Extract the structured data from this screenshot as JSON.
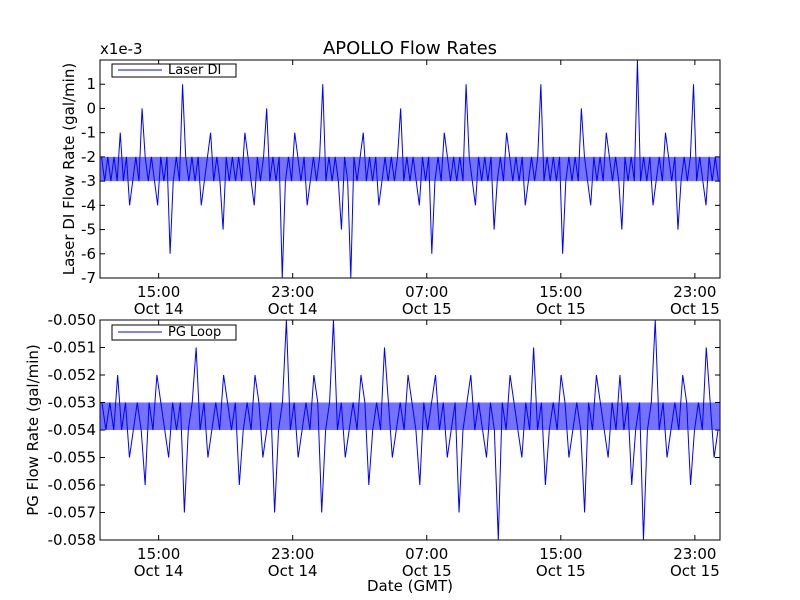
{
  "chart_data": [
    {
      "type": "line",
      "title": "APOLLO Flow Rates",
      "ylabel": "Laser DI Flow Rate (gal/min)",
      "xlabel": "",
      "scale_factor_label": "x1e-3",
      "ylim": [
        -7,
        2
      ],
      "yticks": [
        1,
        0,
        -1,
        -2,
        -3,
        -4,
        -5,
        -6,
        -7
      ],
      "ytick_labels": [
        "1",
        "0",
        "-1",
        "-2",
        "-3",
        "-4",
        "-5",
        "-6",
        "-7"
      ],
      "xlim": [
        "2024-10-14T11:30",
        "2024-10-16T00:30"
      ],
      "xticks": [
        {
          "x": "2024-10-14T15:00",
          "time": "15:00",
          "date": "Oct 14"
        },
        {
          "x": "2024-10-14T23:00",
          "time": "23:00",
          "date": "Oct 14"
        },
        {
          "x": "2024-10-15T07:00",
          "time": "07:00",
          "date": "Oct 15"
        },
        {
          "x": "2024-10-15T15:00",
          "time": "15:00",
          "date": "Oct 15"
        },
        {
          "x": "2024-10-15T23:00",
          "time": "23:00",
          "date": "Oct 15"
        }
      ],
      "grid": false,
      "legend": {
        "position": "top-left",
        "entries": [
          "Laser DI"
        ]
      },
      "series": [
        {
          "name": "Laser DI",
          "color": "#0000ff",
          "typical_range": [
            -3,
            -2
          ],
          "values": [
            -2,
            -3,
            -2,
            -3,
            -2,
            -3,
            -1,
            -3,
            -2,
            -4,
            -3,
            -2,
            -3,
            0,
            -2,
            -3,
            -2,
            -3,
            -4,
            -2,
            -3,
            -2,
            -6,
            -3,
            -2,
            -3,
            1,
            -2,
            -3,
            -2,
            -3,
            -2,
            -4,
            -3,
            -2,
            -1,
            -3,
            -2,
            -3,
            -5,
            -2,
            -3,
            -2,
            -3,
            -2,
            -3,
            -1,
            -2,
            -3,
            -4,
            -2,
            -3,
            -2,
            0,
            -3,
            -2,
            -3,
            -2,
            -7,
            -3,
            -2,
            -3,
            -1,
            -2,
            -3,
            -2,
            -4,
            -3,
            -2,
            -3,
            -2,
            1,
            -3,
            -2,
            -3,
            -2,
            -3,
            -5,
            -2,
            -3,
            -7,
            -2,
            -3,
            -2,
            -1,
            -3,
            -2,
            -3,
            -2,
            -4,
            -3,
            -2,
            -3,
            -2,
            -3,
            -2,
            0,
            -3,
            -2,
            -3,
            -2,
            -3,
            -4,
            -2,
            -3,
            -2,
            -6,
            -3,
            -2,
            -3,
            -1,
            -2,
            -3,
            -2,
            -3,
            -2,
            -3,
            1,
            -2,
            -3,
            -4,
            -2,
            -3,
            -2,
            -3,
            -2,
            -5,
            -3,
            -2,
            -3,
            -1,
            -2,
            -3,
            -2,
            -3,
            -2,
            -4,
            -3,
            -2,
            -3,
            -2,
            1,
            -3,
            -2,
            -3,
            -2,
            -3,
            -2,
            -6,
            -3,
            -2,
            -3,
            -2,
            -3,
            0,
            -2,
            -3,
            -4,
            -2,
            -3,
            -2,
            -3,
            -1,
            -2,
            -3,
            -2,
            -3,
            -5,
            -2,
            -3,
            -2,
            -3,
            2,
            -3,
            -2,
            -3,
            -2,
            -4,
            -3,
            -2,
            -3,
            -1,
            -2,
            -3,
            -2,
            -5,
            -3,
            -2,
            -3,
            -2,
            1,
            -3,
            -2,
            -3,
            -4,
            -2,
            -3,
            -2,
            -3
          ]
        }
      ]
    },
    {
      "type": "line",
      "title": "",
      "ylabel": "PG Flow Rate (gal/min)",
      "xlabel": "Date (GMT)",
      "ylim": [
        -0.058,
        -0.05
      ],
      "yticks": [
        -0.05,
        -0.051,
        -0.052,
        -0.053,
        -0.054,
        -0.055,
        -0.056,
        -0.057,
        -0.058
      ],
      "ytick_labels": [
        "-0.050",
        "-0.051",
        "-0.052",
        "-0.053",
        "-0.054",
        "-0.055",
        "-0.056",
        "-0.057",
        "-0.058"
      ],
      "xlim": [
        "2024-10-14T11:30",
        "2024-10-16T00:30"
      ],
      "xticks": [
        {
          "x": "2024-10-14T15:00",
          "time": "15:00",
          "date": "Oct 14"
        },
        {
          "x": "2024-10-14T23:00",
          "time": "23:00",
          "date": "Oct 14"
        },
        {
          "x": "2024-10-15T07:00",
          "time": "07:00",
          "date": "Oct 15"
        },
        {
          "x": "2024-10-15T15:00",
          "time": "15:00",
          "date": "Oct 15"
        },
        {
          "x": "2024-10-15T23:00",
          "time": "23:00",
          "date": "Oct 15"
        }
      ],
      "grid": false,
      "legend": {
        "position": "top-left",
        "entries": [
          "PG Loop"
        ]
      },
      "series": [
        {
          "name": "PG Loop",
          "color": "#0000ff",
          "typical_range": [
            -0.054,
            -0.053
          ],
          "values": [
            -0.053,
            -0.054,
            -0.053,
            -0.054,
            -0.052,
            -0.054,
            -0.053,
            -0.055,
            -0.054,
            -0.053,
            -0.054,
            -0.056,
            -0.053,
            -0.054,
            -0.052,
            -0.053,
            -0.054,
            -0.055,
            -0.053,
            -0.054,
            -0.053,
            -0.057,
            -0.054,
            -0.053,
            -0.051,
            -0.054,
            -0.053,
            -0.055,
            -0.054,
            -0.053,
            -0.054,
            -0.052,
            -0.053,
            -0.054,
            -0.053,
            -0.056,
            -0.054,
            -0.053,
            -0.054,
            -0.052,
            -0.053,
            -0.055,
            -0.054,
            -0.053,
            -0.057,
            -0.054,
            -0.053,
            -0.05,
            -0.054,
            -0.053,
            -0.055,
            -0.054,
            -0.053,
            -0.054,
            -0.052,
            -0.053,
            -0.057,
            -0.054,
            -0.053,
            -0.05,
            -0.054,
            -0.053,
            -0.055,
            -0.054,
            -0.053,
            -0.054,
            -0.052,
            -0.053,
            -0.056,
            -0.054,
            -0.053,
            -0.054,
            -0.051,
            -0.053,
            -0.055,
            -0.054,
            -0.053,
            -0.054,
            -0.052,
            -0.053,
            -0.054,
            -0.056,
            -0.053,
            -0.054,
            -0.053,
            -0.052,
            -0.054,
            -0.053,
            -0.055,
            -0.054,
            -0.053,
            -0.057,
            -0.054,
            -0.053,
            -0.052,
            -0.054,
            -0.053,
            -0.054,
            -0.055,
            -0.053,
            -0.054,
            -0.058,
            -0.053,
            -0.054,
            -0.052,
            -0.053,
            -0.054,
            -0.055,
            -0.053,
            -0.054,
            -0.051,
            -0.054,
            -0.053,
            -0.056,
            -0.054,
            -0.053,
            -0.054,
            -0.052,
            -0.053,
            -0.055,
            -0.054,
            -0.053,
            -0.054,
            -0.057,
            -0.053,
            -0.054,
            -0.052,
            -0.053,
            -0.054,
            -0.055,
            -0.053,
            -0.054,
            -0.052,
            -0.054,
            -0.053,
            -0.056,
            -0.054,
            -0.053,
            -0.058,
            -0.054,
            -0.053,
            -0.05,
            -0.054,
            -0.053,
            -0.055,
            -0.054,
            -0.053,
            -0.054,
            -0.052,
            -0.053,
            -0.056,
            -0.054,
            -0.053,
            -0.054,
            -0.051,
            -0.053,
            -0.055,
            -0.054
          ]
        }
      ]
    }
  ]
}
